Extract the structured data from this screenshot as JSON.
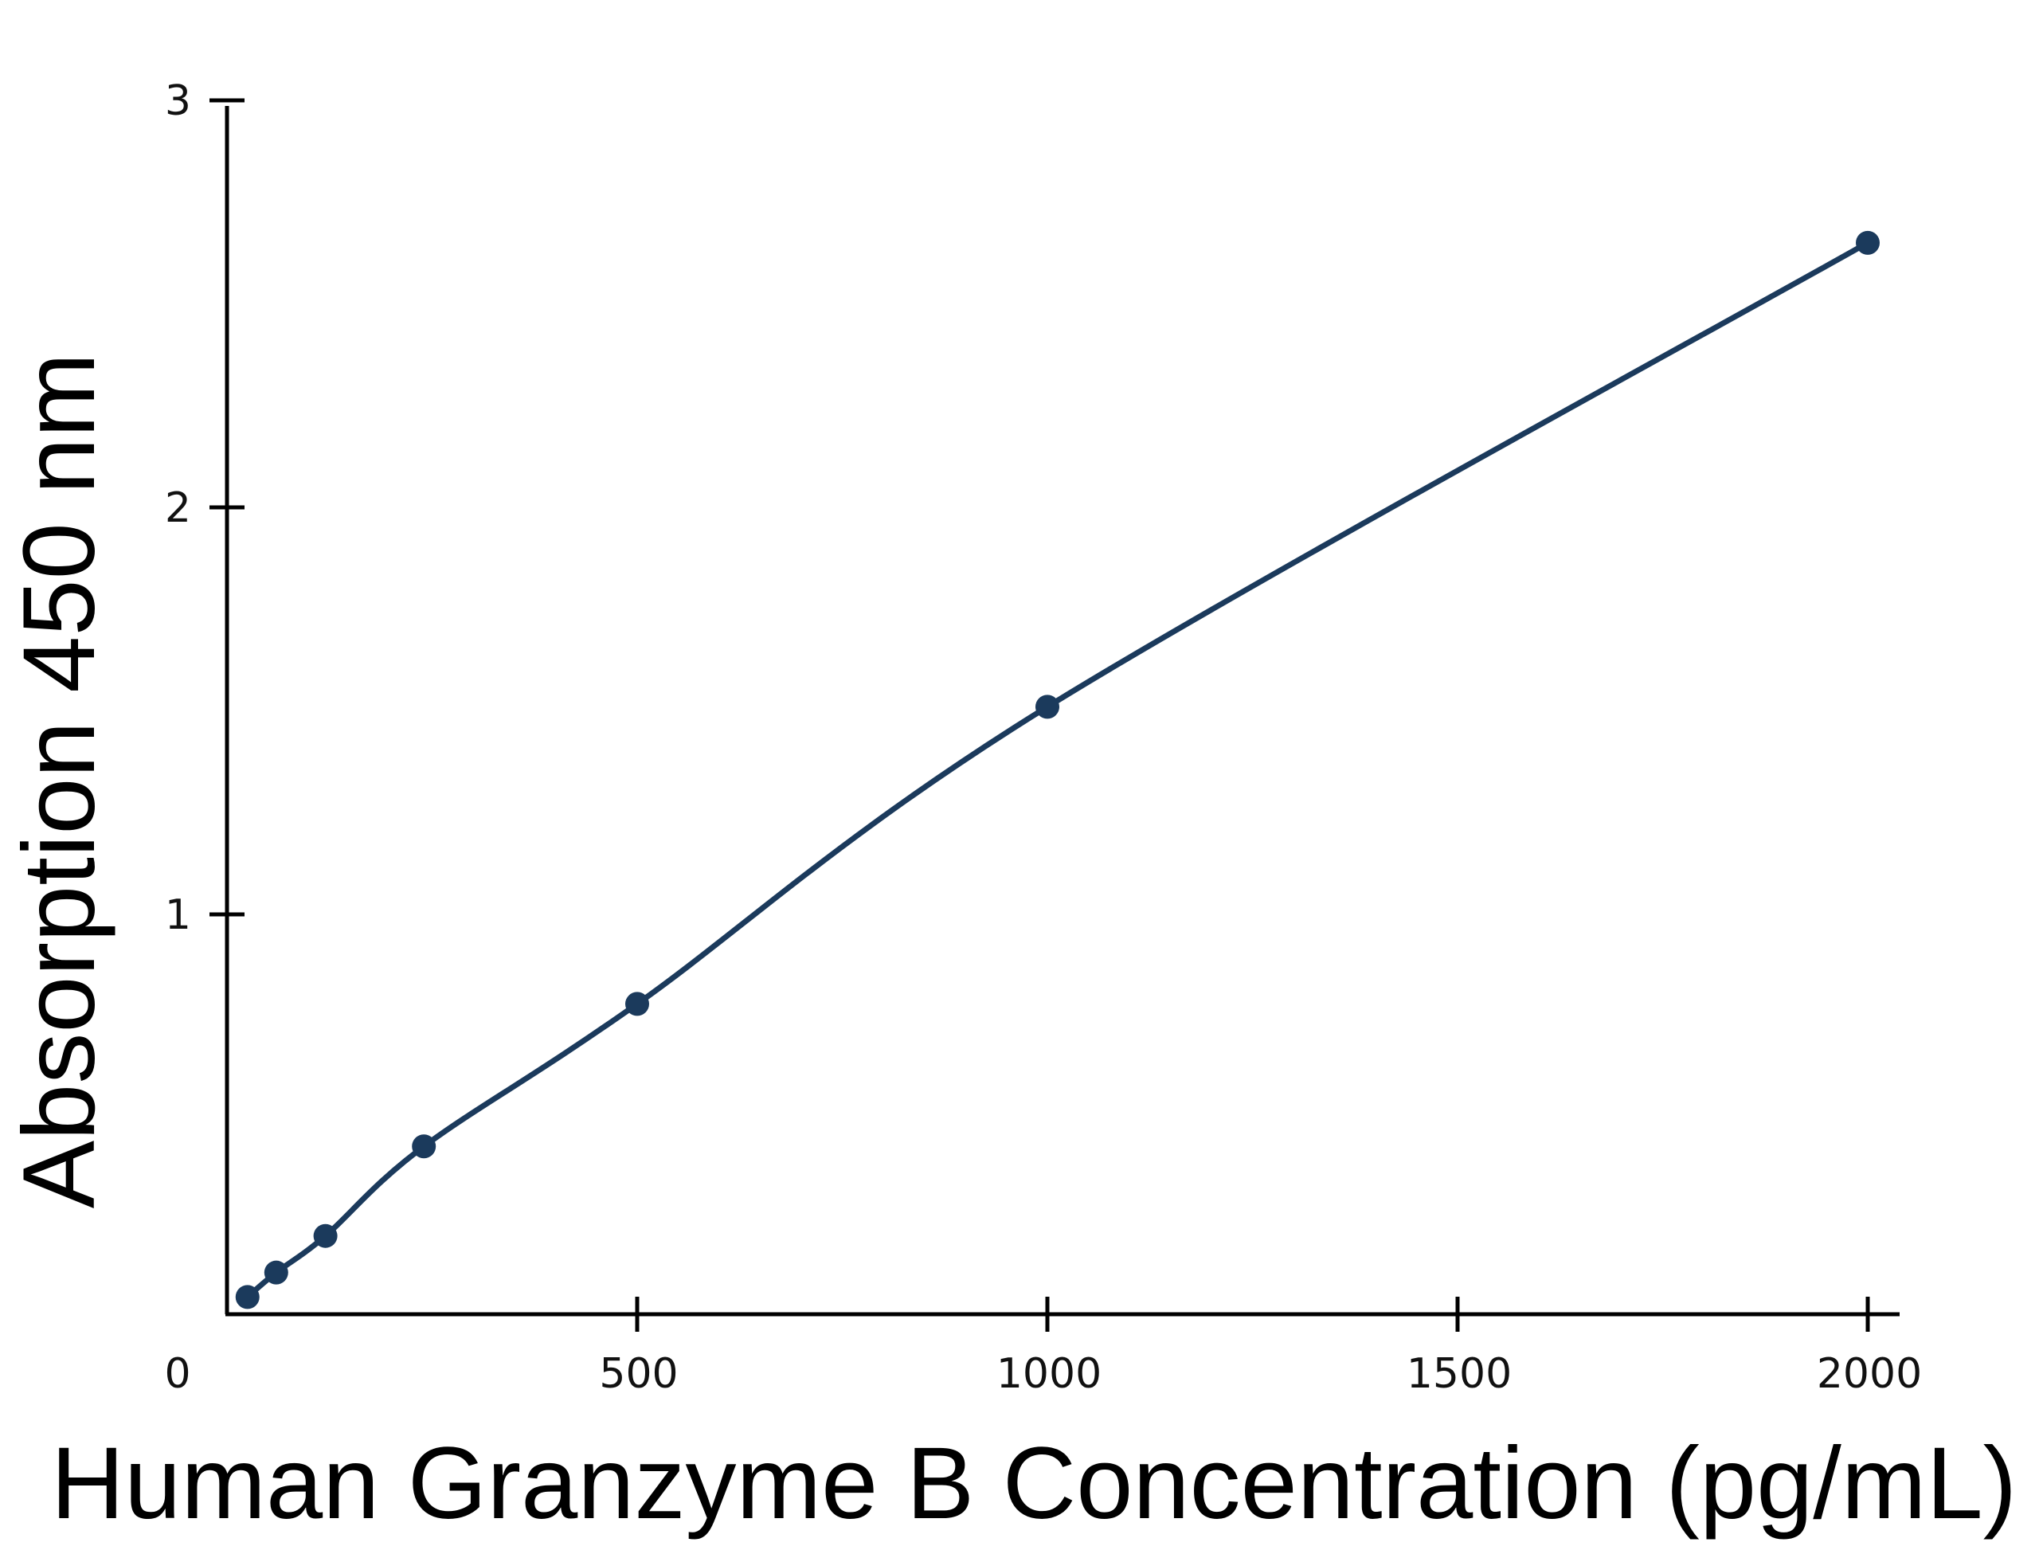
{
  "colors": {
    "series": "#1b3a5c",
    "axis": "#000000",
    "text": "#000000"
  },
  "chart_data": {
    "type": "line",
    "title": "",
    "xlabel": "Human Granzyme B Concentration (pg/mL)",
    "ylabel": "Absorption 450 nm",
    "xlim": [
      0,
      2050
    ],
    "ylim": [
      0,
      3
    ],
    "x_origin_label": "0",
    "x_ticks": [
      500,
      1000,
      1500,
      2000
    ],
    "x_tick_labels": [
      "500",
      "1000",
      "1500",
      "2000"
    ],
    "y_ticks": [
      1,
      2,
      3
    ],
    "y_tick_labels": [
      "1",
      "2",
      "3"
    ],
    "grid": false,
    "legend": "none",
    "series": [
      {
        "points": [
          {
            "x": 25,
            "y": 0.06
          },
          {
            "x": 60,
            "y": 0.12
          },
          {
            "x": 120,
            "y": 0.21
          },
          {
            "x": 240,
            "y": 0.43
          },
          {
            "x": 500,
            "y": 0.78
          },
          {
            "x": 1000,
            "y": 1.51
          },
          {
            "x": 2000,
            "y": 2.65
          }
        ]
      }
    ]
  }
}
